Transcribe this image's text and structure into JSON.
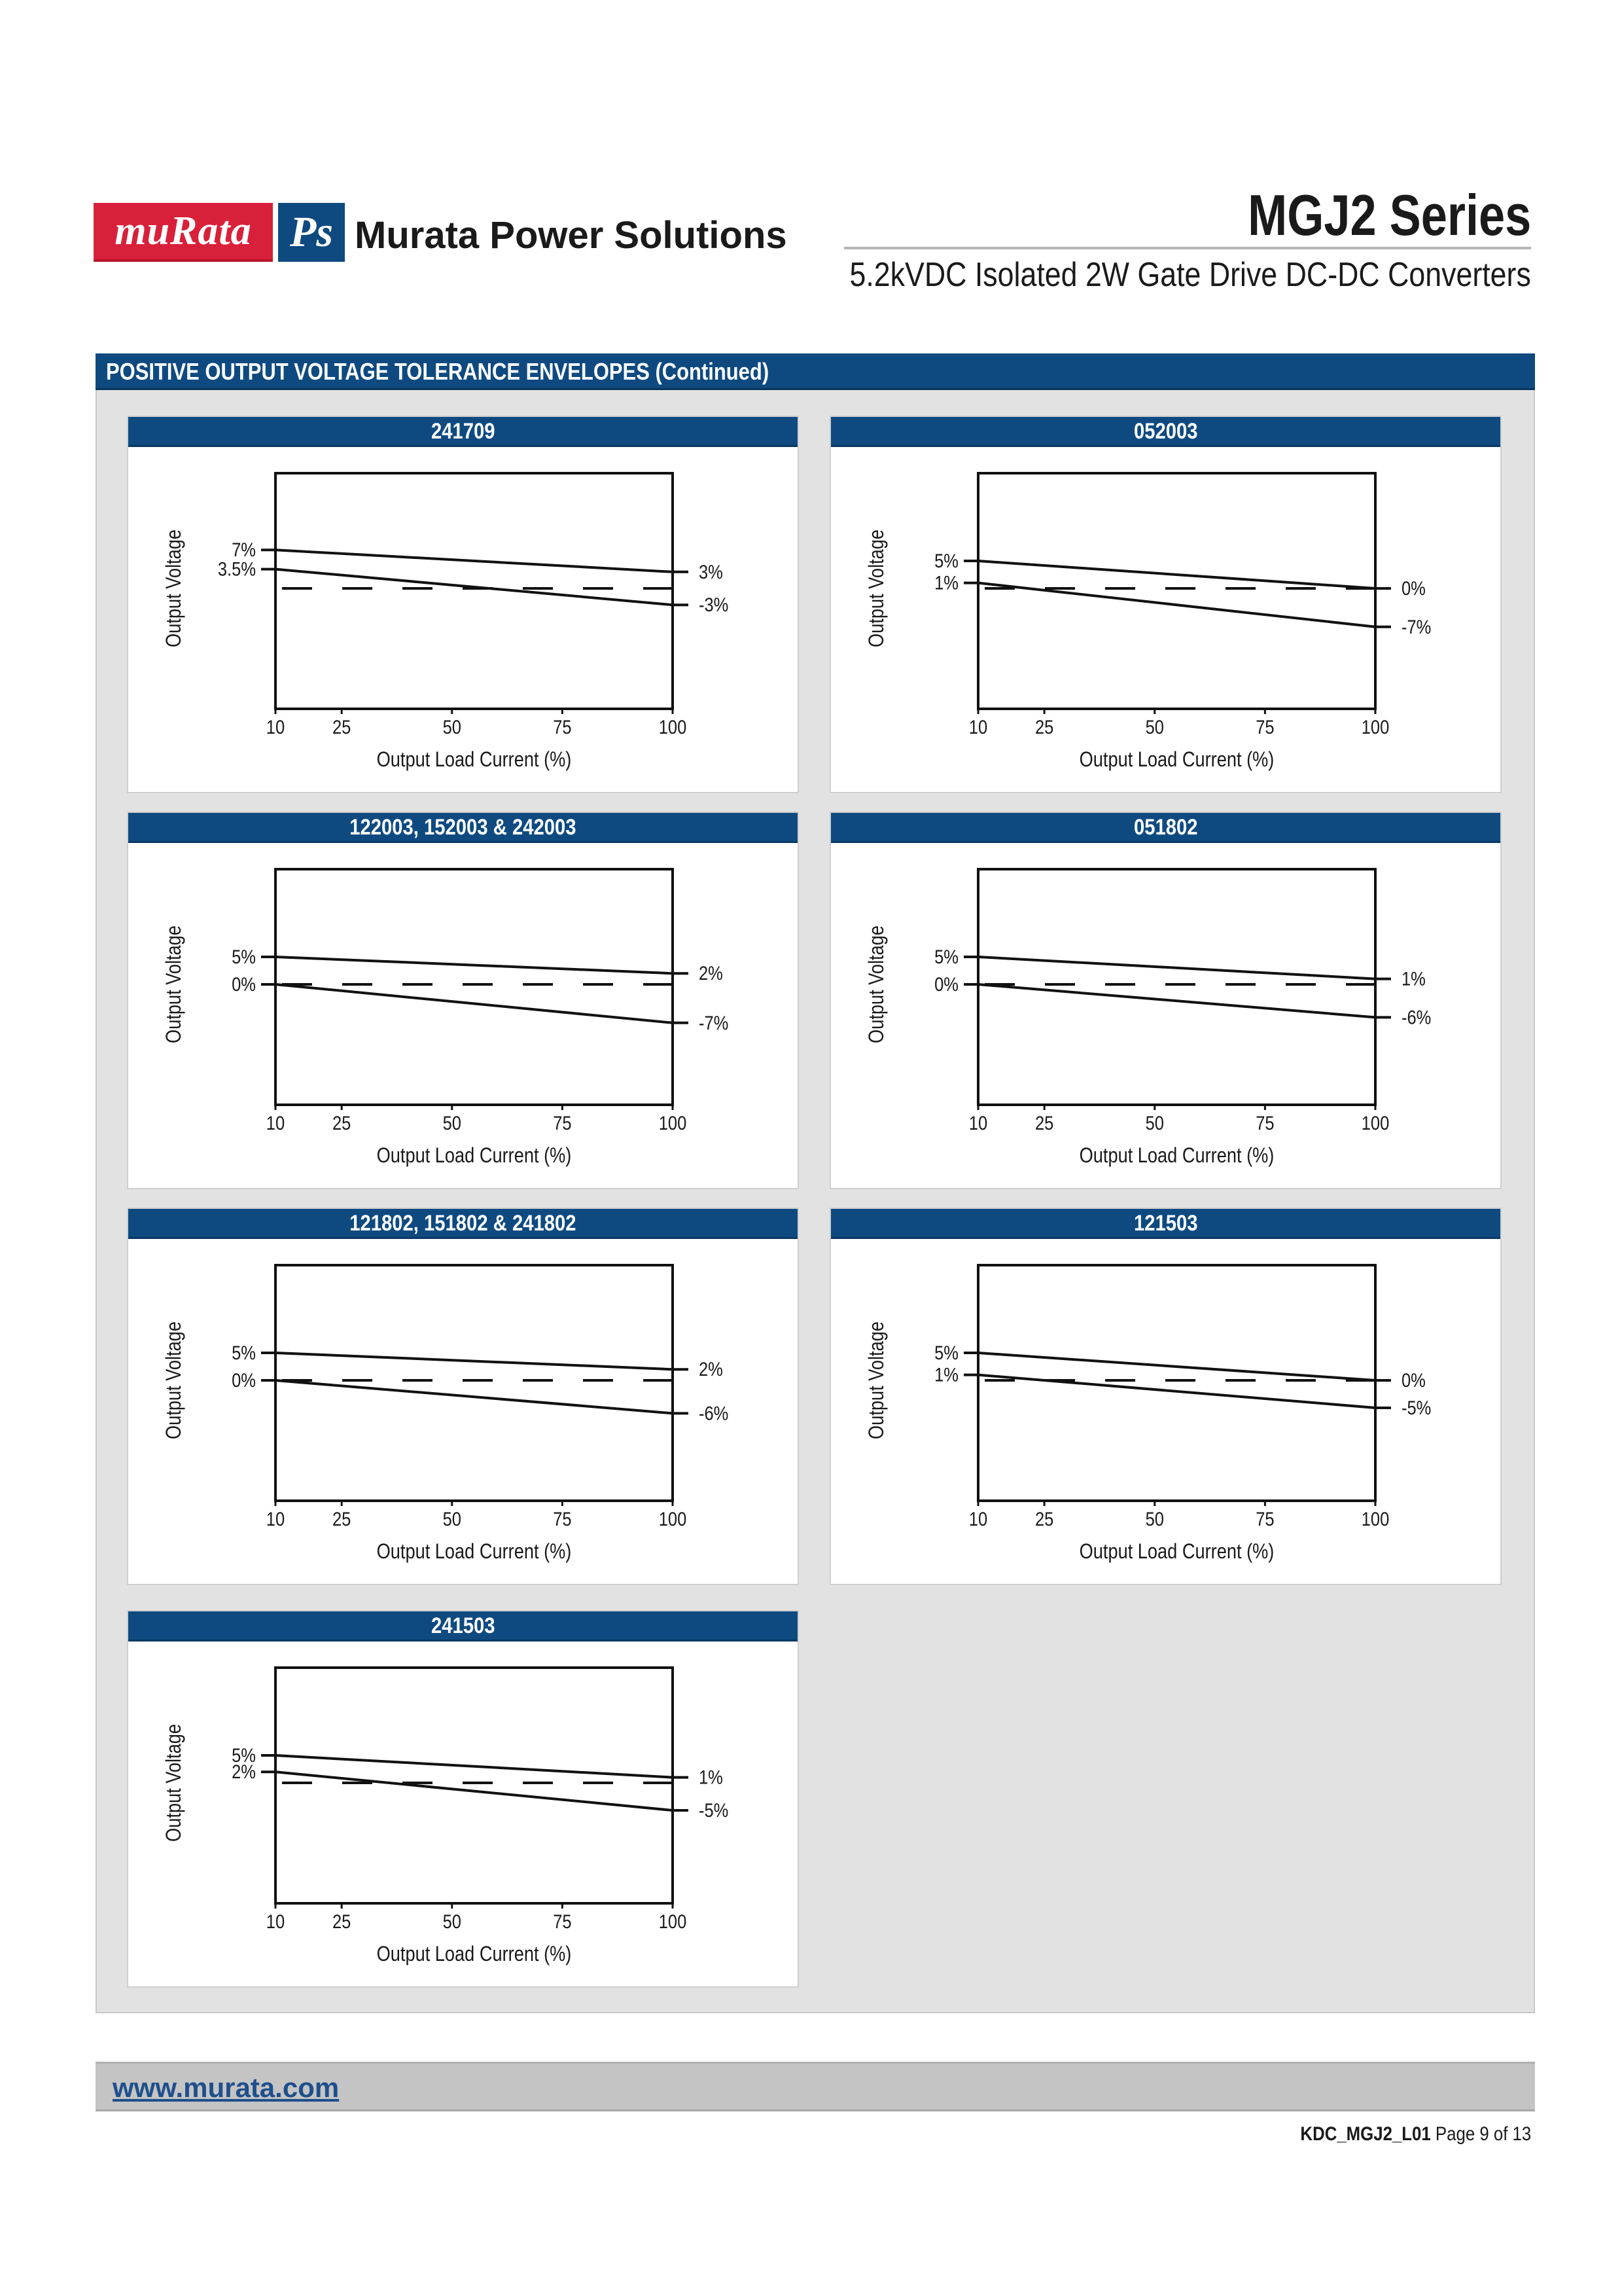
{
  "header": {
    "logo_text": "muRata",
    "logo_ps": "Ps",
    "brand_name": "Murata Power Solutions",
    "series_title": "MGJ2 Series",
    "subtitle": "5.2kVDC Isolated 2W Gate Drive DC-DC Converters"
  },
  "section": {
    "title": "POSITIVE OUTPUT VOLTAGE TOLERANCE ENVELOPES (Continued)"
  },
  "colors": {
    "brand_red": "#d9203a",
    "brand_blue": "#0e4a80",
    "panel_background": "#e2e2e2",
    "footer_bar": "#c4c4c4",
    "link": "#1e4f8c"
  },
  "chart_data": [
    {
      "type": "line",
      "title": "241709",
      "xlabel": "Output Load Current (%)",
      "ylabel": "Output Voltage",
      "xticks": [
        "10",
        "25",
        "50",
        "75",
        "100"
      ],
      "xlim": [
        10,
        100
      ],
      "series": [
        {
          "name": "upper",
          "x": [
            10,
            100
          ],
          "y": [
            7,
            3
          ],
          "start_label": "7%",
          "end_label": "3%"
        },
        {
          "name": "lower",
          "x": [
            10,
            100
          ],
          "y": [
            3.5,
            -3
          ],
          "start_label": "3.5%",
          "end_label": "-3%"
        }
      ],
      "nominal_line": 0
    },
    {
      "type": "line",
      "title": "052003",
      "xlabel": "Output Load Current (%)",
      "ylabel": "Output Voltage",
      "xticks": [
        "10",
        "25",
        "50",
        "75",
        "100"
      ],
      "xlim": [
        10,
        100
      ],
      "series": [
        {
          "name": "upper",
          "x": [
            10,
            100
          ],
          "y": [
            5,
            0
          ],
          "start_label": "5%",
          "end_label": "0%"
        },
        {
          "name": "lower",
          "x": [
            10,
            100
          ],
          "y": [
            1,
            -7
          ],
          "start_label": "1%",
          "end_label": "-7%"
        }
      ],
      "nominal_line": 0
    },
    {
      "type": "line",
      "title": "122003, 152003 & 242003",
      "xlabel": "Output Load Current (%)",
      "ylabel": "Output Voltage",
      "xticks": [
        "10",
        "25",
        "50",
        "75",
        "100"
      ],
      "xlim": [
        10,
        100
      ],
      "series": [
        {
          "name": "upper",
          "x": [
            10,
            100
          ],
          "y": [
            5,
            2
          ],
          "start_label": "5%",
          "end_label": "2%"
        },
        {
          "name": "lower",
          "x": [
            10,
            100
          ],
          "y": [
            0,
            -7
          ],
          "start_label": "0%",
          "end_label": "-7%"
        }
      ],
      "nominal_line": 0
    },
    {
      "type": "line",
      "title": "051802",
      "xlabel": "Output Load Current (%)",
      "ylabel": "Output Voltage",
      "xticks": [
        "10",
        "25",
        "50",
        "75",
        "100"
      ],
      "xlim": [
        10,
        100
      ],
      "series": [
        {
          "name": "upper",
          "x": [
            10,
            100
          ],
          "y": [
            5,
            1
          ],
          "start_label": "5%",
          "end_label": "1%"
        },
        {
          "name": "lower",
          "x": [
            10,
            100
          ],
          "y": [
            0,
            -6
          ],
          "start_label": "0%",
          "end_label": "-6%"
        }
      ],
      "nominal_line": 0
    },
    {
      "type": "line",
      "title": "121802, 151802 & 241802",
      "xlabel": "Output Load Current (%)",
      "ylabel": "Output Voltage",
      "xticks": [
        "10",
        "25",
        "50",
        "75",
        "100"
      ],
      "xlim": [
        10,
        100
      ],
      "series": [
        {
          "name": "upper",
          "x": [
            10,
            100
          ],
          "y": [
            5,
            2
          ],
          "start_label": "5%",
          "end_label": "2%"
        },
        {
          "name": "lower",
          "x": [
            10,
            100
          ],
          "y": [
            0,
            -6
          ],
          "start_label": "0%",
          "end_label": "-6%"
        }
      ],
      "nominal_line": 0
    },
    {
      "type": "line",
      "title": "121503",
      "xlabel": "Output Load Current (%)",
      "ylabel": "Output Voltage",
      "xticks": [
        "10",
        "25",
        "50",
        "75",
        "100"
      ],
      "xlim": [
        10,
        100
      ],
      "series": [
        {
          "name": "upper",
          "x": [
            10,
            100
          ],
          "y": [
            5,
            0
          ],
          "start_label": "5%",
          "end_label": "0%"
        },
        {
          "name": "lower",
          "x": [
            10,
            100
          ],
          "y": [
            1,
            -5
          ],
          "start_label": "1%",
          "end_label": "-5%"
        }
      ],
      "nominal_line": 0
    },
    {
      "type": "line",
      "title": "241503",
      "xlabel": "Output Load Current (%)",
      "ylabel": "Output Voltage",
      "xticks": [
        "10",
        "25",
        "50",
        "75",
        "100"
      ],
      "xlim": [
        10,
        100
      ],
      "series": [
        {
          "name": "upper",
          "x": [
            10,
            100
          ],
          "y": [
            5,
            1
          ],
          "start_label": "5%",
          "end_label": "1%"
        },
        {
          "name": "lower",
          "x": [
            10,
            100
          ],
          "y": [
            2,
            -5
          ],
          "start_label": "2%",
          "end_label": "-5%"
        }
      ],
      "nominal_line": 0
    }
  ],
  "footer": {
    "website": "www.murata.com",
    "doc_code": "KDC_MGJ2_L01",
    "page_text": "Page 9 of 13"
  }
}
